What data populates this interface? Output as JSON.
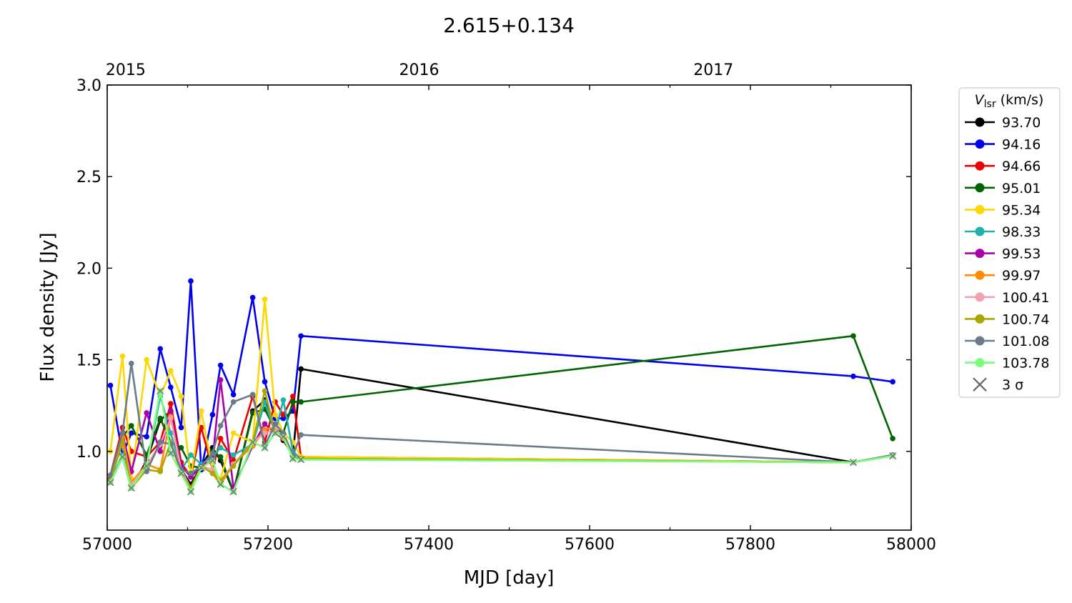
{
  "chart_data": {
    "type": "line",
    "title": "2.615+0.134",
    "xlabel": "MJD [day]",
    "ylabel": "Flux density [Jy]",
    "xlim": [
      57000,
      58000
    ],
    "ylim": [
      0.57,
      3.0
    ],
    "x_ticks": [
      57000,
      57200,
      57400,
      57600,
      57800,
      58000
    ],
    "x_tick_labels": [
      "57000",
      "57200",
      "57400",
      "57600",
      "57800",
      "58000"
    ],
    "y_ticks": [
      1.0,
      1.5,
      2.0,
      2.5,
      3.0
    ],
    "y_tick_labels": [
      "1.0",
      "1.5",
      "2.0",
      "2.5",
      "3.0"
    ],
    "top_axis": {
      "ticks": [
        57023,
        57388,
        57754
      ],
      "labels": [
        "2015",
        "2016",
        "2017"
      ]
    },
    "grid": false,
    "legend": {
      "position": "outside-right",
      "title_main": "V",
      "title_sub": "lsr",
      "title_unit": " (km/s)",
      "sigma_label": "3 σ"
    },
    "x": [
      57004,
      57019,
      57030,
      57049,
      57066,
      57079,
      57092,
      57104,
      57117,
      57131,
      57141,
      57157,
      57181,
      57196,
      57209,
      57219,
      57231,
      57241,
      57928,
      57977
    ],
    "series": [
      {
        "name": "93.70",
        "color": "#000000",
        "values": [
          0.83,
          0.97,
          0.8,
          0.95,
          1.17,
          1.22,
          0.9,
          0.82,
          0.92,
          1.02,
          0.95,
          0.78,
          1.22,
          1.28,
          1.12,
          1.06,
          0.98,
          1.45,
          0.94,
          0.98
        ]
      },
      {
        "name": "94.16",
        "color": "#0000ee",
        "values": [
          1.36,
          0.98,
          1.1,
          1.08,
          1.56,
          1.35,
          1.13,
          1.93,
          0.9,
          1.2,
          1.47,
          1.31,
          1.84,
          1.38,
          1.18,
          1.18,
          1.22,
          1.63,
          1.41,
          1.38
        ]
      },
      {
        "name": "94.66",
        "color": "#ee0000",
        "values": [
          0.87,
          1.13,
          1.0,
          0.97,
          1.05,
          1.26,
          0.94,
          0.86,
          1.13,
          0.9,
          1.07,
          0.95,
          1.3,
          1.05,
          1.27,
          1.2,
          1.3,
          0.97,
          0.94,
          0.98
        ]
      },
      {
        "name": "95.01",
        "color": "#006400",
        "values": [
          0.85,
          1.08,
          1.14,
          0.98,
          1.18,
          1.05,
          1.02,
          0.92,
          0.91,
          1.0,
          0.97,
          0.78,
          1.21,
          1.23,
          1.12,
          1.1,
          1.27,
          1.27,
          1.63,
          1.07
        ]
      },
      {
        "name": "95.34",
        "color": "#ffd700",
        "values": [
          1.0,
          1.52,
          0.85,
          1.5,
          1.3,
          1.44,
          1.3,
          0.86,
          1.22,
          0.9,
          0.85,
          1.1,
          1.05,
          1.83,
          1.2,
          1.1,
          1.05,
          0.97,
          0.94,
          0.98
        ]
      },
      {
        "name": "98.33",
        "color": "#20b2aa",
        "values": [
          0.84,
          0.98,
          0.8,
          0.92,
          1.3,
          1.1,
          0.9,
          0.98,
          0.93,
          0.97,
          1.02,
          0.98,
          1.04,
          1.27,
          1.1,
          1.28,
          1.0,
          0.96,
          0.94,
          0.98
        ]
      },
      {
        "name": "99.53",
        "color": "#aa00aa",
        "values": [
          0.85,
          1.1,
          0.89,
          1.21,
          1.0,
          1.22,
          0.92,
          0.86,
          0.92,
          0.95,
          1.39,
          0.8,
          1.03,
          1.15,
          1.1,
          1.07,
          0.97,
          0.96,
          0.94,
          0.98
        ]
      },
      {
        "name": "99.97",
        "color": "#ff8c00",
        "values": [
          0.83,
          1.08,
          0.83,
          0.93,
          0.9,
          1.19,
          0.88,
          0.79,
          0.92,
          0.88,
          0.82,
          0.93,
          1.03,
          1.12,
          1.13,
          1.07,
          0.97,
          0.96,
          0.94,
          0.98
        ]
      },
      {
        "name": "100.41",
        "color": "#f4a0b0",
        "values": [
          0.84,
          1.05,
          0.82,
          0.92,
          1.04,
          1.18,
          0.9,
          0.8,
          0.92,
          0.9,
          0.84,
          0.93,
          1.05,
          1.1,
          1.12,
          1.08,
          0.97,
          0.96,
          0.94,
          0.98
        ]
      },
      {
        "name": "100.74",
        "color": "#a8a800",
        "values": [
          0.84,
          1.05,
          0.8,
          0.9,
          0.89,
          1.05,
          0.88,
          0.8,
          0.92,
          0.88,
          0.84,
          0.92,
          1.05,
          1.33,
          1.1,
          1.08,
          0.97,
          0.96,
          0.94,
          0.98
        ]
      },
      {
        "name": "101.08",
        "color": "#6a7b8b",
        "values": [
          0.87,
          1.1,
          1.48,
          0.89,
          1.05,
          1.04,
          0.9,
          0.88,
          0.92,
          0.99,
          1.14,
          1.27,
          1.31,
          1.03,
          1.15,
          1.1,
          0.98,
          1.09,
          0.94,
          0.98
        ]
      },
      {
        "name": "103.78",
        "color": "#7cfc7c",
        "values": [
          0.83,
          0.97,
          0.8,
          0.92,
          1.33,
          0.99,
          0.88,
          0.78,
          0.91,
          0.95,
          0.82,
          0.78,
          1.05,
          1.02,
          1.1,
          1.08,
          0.96,
          0.955,
          0.94,
          0.975
        ]
      }
    ]
  }
}
